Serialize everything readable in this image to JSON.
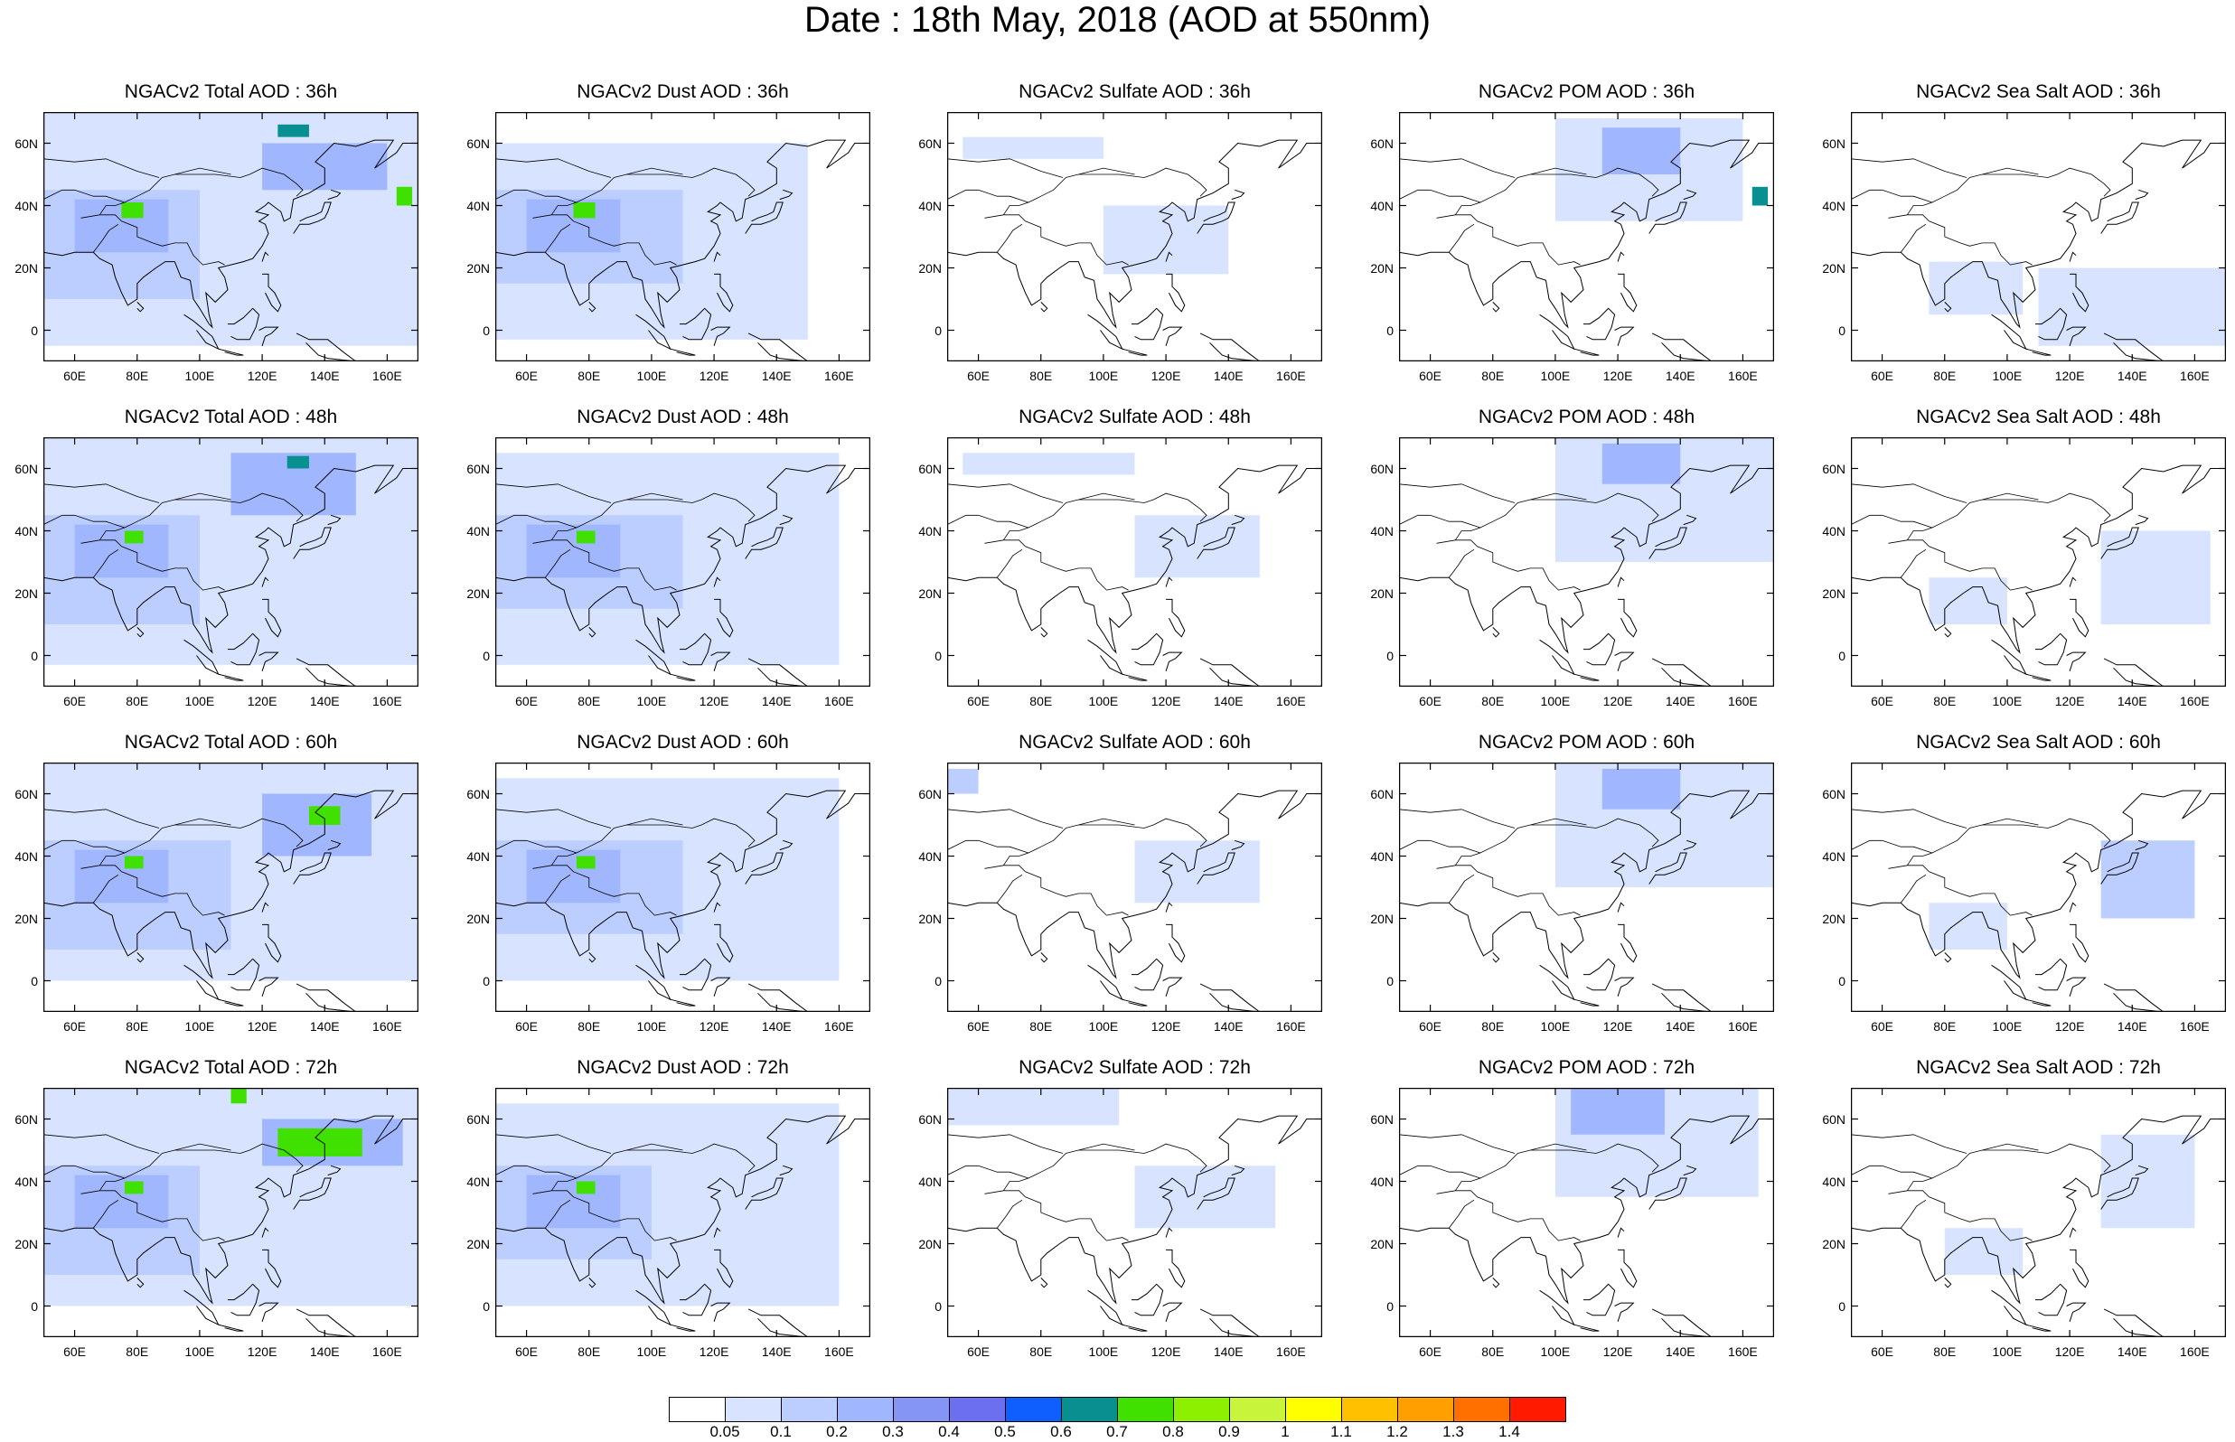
{
  "title": "Date : 18th May, 2018 (AOD at 550nm)",
  "x_ticks": [
    "60E",
    "80E",
    "100E",
    "120E",
    "140E",
    "160E"
  ],
  "x_tick_values": [
    60,
    80,
    100,
    120,
    140,
    160
  ],
  "y_ticks": [
    "60N",
    "40N",
    "20N",
    "0"
  ],
  "y_tick_values": [
    60,
    40,
    20,
    0
  ],
  "extent": {
    "lon_min": 50,
    "lon_max": 170,
    "lat_min": -10,
    "lat_max": 70
  },
  "rows": [
    {
      "lead": "36h",
      "titles": [
        "NGACv2 Total AOD : 36h",
        "NGACv2 Dust AOD : 36h",
        "NGACv2 Sulfate AOD : 36h",
        "NGACv2 POM AOD : 36h",
        "NGACv2 Sea Salt AOD : 36h"
      ]
    },
    {
      "lead": "48h",
      "titles": [
        "NGACv2 Total AOD : 48h",
        "NGACv2 Dust AOD : 48h",
        "NGACv2 Sulfate AOD : 48h",
        "NGACv2 POM AOD : 48h",
        "NGACv2 Sea Salt AOD : 48h"
      ]
    },
    {
      "lead": "60h",
      "titles": [
        "NGACv2 Total AOD : 60h",
        "NGACv2 Dust AOD : 60h",
        "NGACv2 Sulfate AOD : 60h",
        "NGACv2 POM AOD : 60h",
        "NGACv2 Sea Salt AOD : 60h"
      ]
    },
    {
      "lead": "72h",
      "titles": [
        "NGACv2 Total AOD : 72h",
        "NGACv2 Dust AOD : 72h",
        "NGACv2 Sulfate AOD : 72h",
        "NGACv2 POM AOD : 72h",
        "NGACv2 Sea Salt  AOD : 72h"
      ]
    }
  ],
  "colorbar": {
    "labels": [
      "0.05",
      "0.1",
      "0.2",
      "0.3",
      "0.4",
      "0.5",
      "0.6",
      "0.7",
      "0.8",
      "0.9",
      "1",
      "1.1",
      "1.2",
      "1.3",
      "1.4"
    ],
    "colors": [
      "#ffffff",
      "#d7e3ff",
      "#bccdff",
      "#a0b6ff",
      "#8495f5",
      "#6b6ff0",
      "#0f5fff",
      "#088f8f",
      "#40e000",
      "#8cf000",
      "#c8f53c",
      "#ffff00",
      "#ffc000",
      "#ffa000",
      "#ff7000",
      "#ff1a00"
    ]
  },
  "plumes": [
    [
      [
        {
          "lon": [
            50,
            170
          ],
          "lat": [
            -5,
            70
          ],
          "lvl": 1
        },
        {
          "lon": [
            50,
            100
          ],
          "lat": [
            10,
            45
          ],
          "lvl": 2
        },
        {
          "lon": [
            60,
            90
          ],
          "lat": [
            25,
            42
          ],
          "lvl": 3
        },
        {
          "lon": [
            75,
            82
          ],
          "lat": [
            36,
            41
          ],
          "lvl": 8
        },
        {
          "lon": [
            120,
            160
          ],
          "lat": [
            45,
            60
          ],
          "lvl": 3
        },
        {
          "lon": [
            163,
            168
          ],
          "lat": [
            40,
            46
          ],
          "lvl": 8
        },
        {
          "lon": [
            125,
            135
          ],
          "lat": [
            62,
            66
          ],
          "lvl": 7
        }
      ],
      [
        {
          "lon": [
            50,
            150
          ],
          "lat": [
            -3,
            60
          ],
          "lvl": 1
        },
        {
          "lon": [
            50,
            110
          ],
          "lat": [
            15,
            45
          ],
          "lvl": 2
        },
        {
          "lon": [
            60,
            90
          ],
          "lat": [
            25,
            42
          ],
          "lvl": 3
        },
        {
          "lon": [
            75,
            82
          ],
          "lat": [
            36,
            41
          ],
          "lvl": 8
        }
      ],
      [
        {
          "lon": [
            55,
            100
          ],
          "lat": [
            55,
            62
          ],
          "lvl": 1
        },
        {
          "lon": [
            100,
            140
          ],
          "lat": [
            18,
            40
          ],
          "lvl": 1
        }
      ],
      [
        {
          "lon": [
            100,
            160
          ],
          "lat": [
            35,
            68
          ],
          "lvl": 1
        },
        {
          "lon": [
            115,
            140
          ],
          "lat": [
            50,
            65
          ],
          "lvl": 3
        },
        {
          "lon": [
            163,
            168
          ],
          "lat": [
            40,
            46
          ],
          "lvl": 7
        }
      ],
      [
        {
          "lon": [
            75,
            105
          ],
          "lat": [
            5,
            22
          ],
          "lvl": 1
        },
        {
          "lon": [
            110,
            170
          ],
          "lat": [
            -5,
            20
          ],
          "lvl": 1
        }
      ]
    ],
    [
      [
        {
          "lon": [
            50,
            170
          ],
          "lat": [
            -3,
            70
          ],
          "lvl": 1
        },
        {
          "lon": [
            50,
            100
          ],
          "lat": [
            10,
            45
          ],
          "lvl": 2
        },
        {
          "lon": [
            60,
            90
          ],
          "lat": [
            25,
            42
          ],
          "lvl": 3
        },
        {
          "lon": [
            76,
            82
          ],
          "lat": [
            36,
            40
          ],
          "lvl": 8
        },
        {
          "lon": [
            110,
            150
          ],
          "lat": [
            45,
            65
          ],
          "lvl": 3
        },
        {
          "lon": [
            128,
            135
          ],
          "lat": [
            60,
            64
          ],
          "lvl": 7
        }
      ],
      [
        {
          "lon": [
            50,
            160
          ],
          "lat": [
            -3,
            65
          ],
          "lvl": 1
        },
        {
          "lon": [
            50,
            110
          ],
          "lat": [
            15,
            45
          ],
          "lvl": 2
        },
        {
          "lon": [
            60,
            90
          ],
          "lat": [
            25,
            42
          ],
          "lvl": 3
        },
        {
          "lon": [
            76,
            82
          ],
          "lat": [
            36,
            40
          ],
          "lvl": 8
        }
      ],
      [
        {
          "lon": [
            55,
            110
          ],
          "lat": [
            58,
            65
          ],
          "lvl": 1
        },
        {
          "lon": [
            110,
            150
          ],
          "lat": [
            25,
            45
          ],
          "lvl": 1
        }
      ],
      [
        {
          "lon": [
            100,
            170
          ],
          "lat": [
            30,
            70
          ],
          "lvl": 1
        },
        {
          "lon": [
            115,
            140
          ],
          "lat": [
            55,
            68
          ],
          "lvl": 3
        }
      ],
      [
        {
          "lon": [
            75,
            100
          ],
          "lat": [
            10,
            25
          ],
          "lvl": 1
        },
        {
          "lon": [
            130,
            165
          ],
          "lat": [
            10,
            40
          ],
          "lvl": 1
        }
      ]
    ],
    [
      [
        {
          "lon": [
            50,
            170
          ],
          "lat": [
            0,
            70
          ],
          "lvl": 1
        },
        {
          "lon": [
            50,
            110
          ],
          "lat": [
            10,
            45
          ],
          "lvl": 2
        },
        {
          "lon": [
            60,
            90
          ],
          "lat": [
            25,
            42
          ],
          "lvl": 3
        },
        {
          "lon": [
            76,
            82
          ],
          "lat": [
            36,
            40
          ],
          "lvl": 8
        },
        {
          "lon": [
            120,
            155
          ],
          "lat": [
            40,
            60
          ],
          "lvl": 3
        },
        {
          "lon": [
            135,
            145
          ],
          "lat": [
            50,
            56
          ],
          "lvl": 8
        }
      ],
      [
        {
          "lon": [
            50,
            160
          ],
          "lat": [
            0,
            65
          ],
          "lvl": 1
        },
        {
          "lon": [
            50,
            110
          ],
          "lat": [
            15,
            45
          ],
          "lvl": 2
        },
        {
          "lon": [
            60,
            90
          ],
          "lat": [
            25,
            42
          ],
          "lvl": 3
        },
        {
          "lon": [
            76,
            82
          ],
          "lat": [
            36,
            40
          ],
          "lvl": 8
        }
      ],
      [
        {
          "lon": [
            50,
            60
          ],
          "lat": [
            60,
            68
          ],
          "lvl": 2
        },
        {
          "lon": [
            110,
            150
          ],
          "lat": [
            25,
            45
          ],
          "lvl": 1
        }
      ],
      [
        {
          "lon": [
            100,
            170
          ],
          "lat": [
            30,
            70
          ],
          "lvl": 1
        },
        {
          "lon": [
            115,
            140
          ],
          "lat": [
            55,
            68
          ],
          "lvl": 3
        }
      ],
      [
        {
          "lon": [
            75,
            100
          ],
          "lat": [
            10,
            25
          ],
          "lvl": 1
        },
        {
          "lon": [
            130,
            160
          ],
          "lat": [
            20,
            45
          ],
          "lvl": 2
        }
      ]
    ],
    [
      [
        {
          "lon": [
            50,
            170
          ],
          "lat": [
            0,
            70
          ],
          "lvl": 1
        },
        {
          "lon": [
            50,
            100
          ],
          "lat": [
            10,
            45
          ],
          "lvl": 2
        },
        {
          "lon": [
            60,
            90
          ],
          "lat": [
            25,
            42
          ],
          "lvl": 3
        },
        {
          "lon": [
            76,
            82
          ],
          "lat": [
            36,
            40
          ],
          "lvl": 8
        },
        {
          "lon": [
            120,
            165
          ],
          "lat": [
            45,
            60
          ],
          "lvl": 3
        },
        {
          "lon": [
            125,
            152
          ],
          "lat": [
            48,
            57
          ],
          "lvl": 8
        },
        {
          "lon": [
            110,
            115
          ],
          "lat": [
            65,
            70
          ],
          "lvl": 8
        }
      ],
      [
        {
          "lon": [
            50,
            160
          ],
          "lat": [
            0,
            65
          ],
          "lvl": 1
        },
        {
          "lon": [
            50,
            100
          ],
          "lat": [
            15,
            45
          ],
          "lvl": 2
        },
        {
          "lon": [
            60,
            90
          ],
          "lat": [
            25,
            42
          ],
          "lvl": 3
        },
        {
          "lon": [
            76,
            82
          ],
          "lat": [
            36,
            40
          ],
          "lvl": 8
        }
      ],
      [
        {
          "lon": [
            50,
            105
          ],
          "lat": [
            58,
            70
          ],
          "lvl": 1
        },
        {
          "lon": [
            110,
            155
          ],
          "lat": [
            25,
            45
          ],
          "lvl": 1
        }
      ],
      [
        {
          "lon": [
            100,
            165
          ],
          "lat": [
            35,
            70
          ],
          "lvl": 1
        },
        {
          "lon": [
            105,
            135
          ],
          "lat": [
            55,
            70
          ],
          "lvl": 3
        }
      ],
      [
        {
          "lon": [
            80,
            105
          ],
          "lat": [
            10,
            25
          ],
          "lvl": 1
        },
        {
          "lon": [
            130,
            160
          ],
          "lat": [
            25,
            55
          ],
          "lvl": 1
        }
      ]
    ]
  ]
}
